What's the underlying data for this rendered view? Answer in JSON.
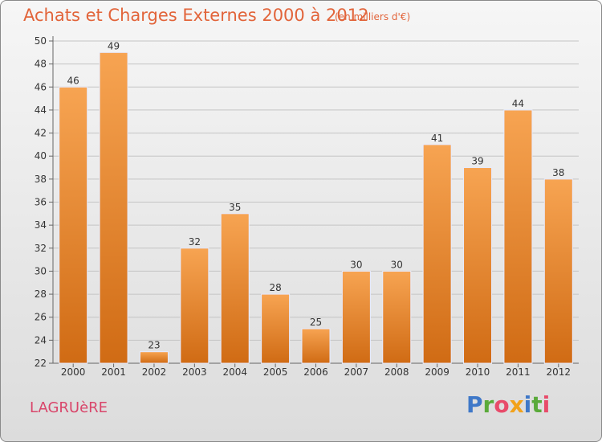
{
  "page": {
    "title": "Achats et Charges Externes 2000 à 2012",
    "subtitle": "(en milliers d'€)",
    "place": "LAGRUèRE",
    "brand": "Proxiti"
  },
  "colors": {
    "bar_top": "#f7a452",
    "bar_bottom": "#d06b14",
    "title": "#e2643a",
    "place": "#d9456a"
  },
  "chart_data": {
    "type": "bar",
    "categories": [
      "2000",
      "2001",
      "2002",
      "2003",
      "2004",
      "2005",
      "2006",
      "2007",
      "2008",
      "2009",
      "2010",
      "2011",
      "2012"
    ],
    "values": [
      46,
      49,
      23,
      32,
      35,
      28,
      25,
      30,
      30,
      41,
      39,
      44,
      38
    ],
    "data_labels": [
      "46",
      "49",
      "23",
      "32",
      "35",
      "28",
      "25",
      "30",
      "30",
      "41",
      "39",
      "44",
      "38"
    ],
    "title": "Achats et Charges Externes 2000 à 2012",
    "subtitle": "(en milliers d'€)",
    "xlabel": "",
    "ylabel": "",
    "ylim": [
      22,
      50
    ],
    "yticks": [
      "22",
      "24",
      "26",
      "28",
      "30",
      "32",
      "34",
      "36",
      "38",
      "40",
      "42",
      "44",
      "46",
      "48",
      "50"
    ],
    "grid": true,
    "legend": "none"
  }
}
